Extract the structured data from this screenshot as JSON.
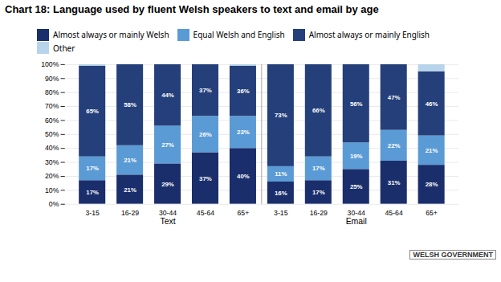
{
  "chart_data": {
    "type": "bar",
    "title": "Chart 18: Language used by fluent Welsh speakers to text and email by age",
    "categories": [
      "3-15",
      "16-29",
      "30-44",
      "45-64",
      "65+",
      "3-15",
      "16-29",
      "30-44",
      "45-64",
      "65+"
    ],
    "groups": [
      {
        "label": "Text",
        "size": 5
      },
      {
        "label": "Email",
        "size": 5
      }
    ],
    "series": [
      {
        "name": "Almost always or mainly Welsh",
        "color": "#1a2e6b",
        "values": [
          17,
          21,
          29,
          37,
          40,
          16,
          17,
          25,
          31,
          28
        ],
        "value_labels": [
          "17%",
          "21%",
          "29%",
          "37%",
          "40%",
          "16%",
          "17%",
          "25%",
          "31%",
          "28%"
        ]
      },
      {
        "name": "Equal Welsh and English",
        "color": "#5b9bd5",
        "values": [
          17,
          21,
          27,
          26,
          23,
          11,
          17,
          19,
          22,
          21
        ],
        "value_labels": [
          "17%",
          "21%",
          "27%",
          "26%",
          "23%",
          "11%",
          "17%",
          "19%",
          "22%",
          "21%"
        ]
      },
      {
        "name": "Almost always or mainly English",
        "color": "#243f7a",
        "values": [
          65,
          58,
          44,
          37,
          36,
          73,
          66,
          56,
          47,
          46
        ],
        "value_labels": [
          "65%",
          "58%",
          "44%",
          "37%",
          "36%",
          "73%",
          "66%",
          "56%",
          "47%",
          "46%"
        ]
      },
      {
        "name": "Other",
        "color": "#b8d4ea",
        "values": [
          1,
          0,
          0,
          0,
          1,
          0,
          0,
          0,
          0,
          5
        ],
        "value_labels": [
          null,
          null,
          null,
          null,
          null,
          null,
          null,
          null,
          null,
          null
        ]
      }
    ],
    "stacked": true,
    "data_labels": true,
    "ylim": [
      0,
      100
    ],
    "yticks": [
      {
        "value": 0,
        "label": "0%"
      },
      {
        "value": 10,
        "label": "10%"
      },
      {
        "value": 20,
        "label": "20%"
      },
      {
        "value": 30,
        "label": "30%"
      },
      {
        "value": 40,
        "label": "40%"
      },
      {
        "value": 50,
        "label": "50%"
      },
      {
        "value": 60,
        "label": "60%"
      },
      {
        "value": 70,
        "label": "70%"
      },
      {
        "value": 80,
        "label": "80%"
      },
      {
        "value": 90,
        "label": "90%"
      },
      {
        "value": 100,
        "label": "100%"
      }
    ],
    "grid": true,
    "legend": "top",
    "annotations": [
      "WELSH GOVERNMENT"
    ]
  }
}
